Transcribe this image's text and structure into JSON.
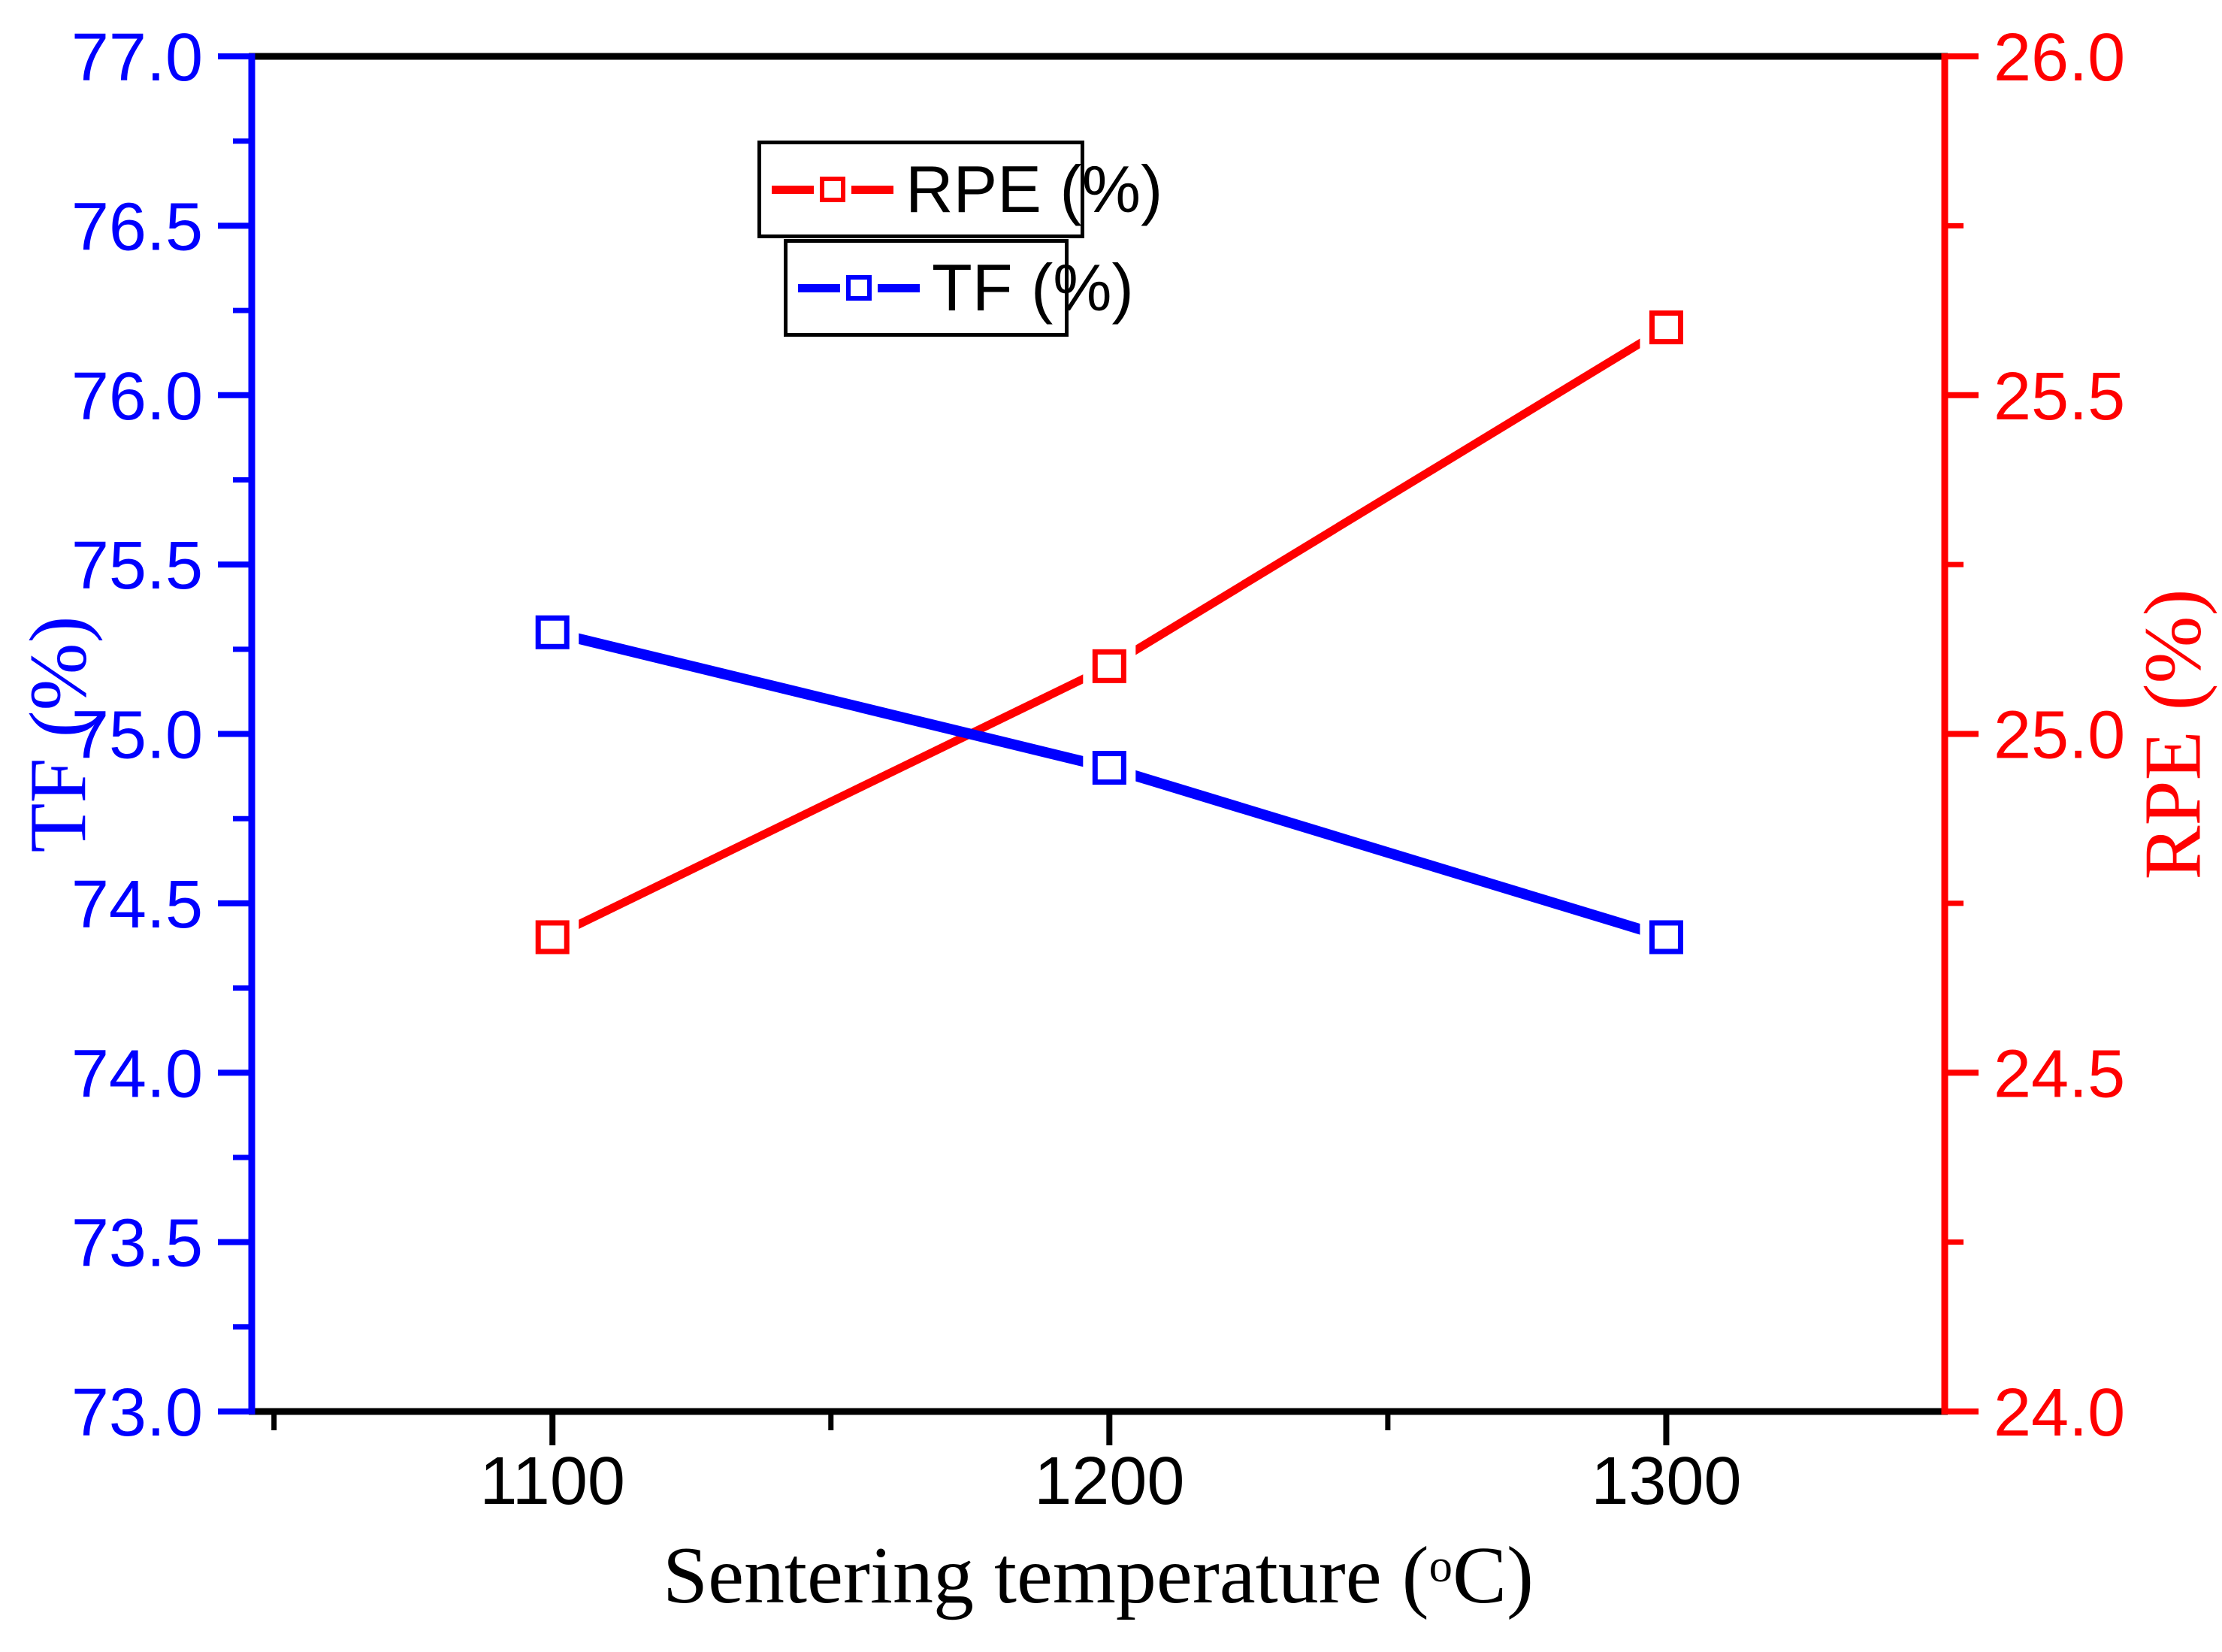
{
  "figure": {
    "background": "#ffffff"
  },
  "chart_data": {
    "type": "line",
    "title": "",
    "grid": false,
    "x_axis": {
      "label": "Sentering temperature (°C)",
      "label_parts": {
        "prefix": "Sentering temperature (",
        "sup": "o",
        "suffix": "C)"
      },
      "color": "#000000",
      "lim": [
        1046,
        1350
      ],
      "tick_values": [
        1100,
        1200,
        1300
      ],
      "tick_labels": [
        "1100",
        "1200",
        "1300"
      ],
      "minor_tick_values": [
        1050,
        1150,
        1250
      ]
    },
    "left_axis": {
      "label": "TF (%)",
      "color": "#0000ff",
      "lim": [
        73.0,
        77.0
      ],
      "tick_values": [
        77.0,
        76.5,
        76.0,
        75.5,
        75.0,
        74.5,
        74.0,
        73.5,
        73.0
      ],
      "tick_labels": [
        "77.0",
        "76.5",
        "76.0",
        "75.5",
        "75.0",
        "74.5",
        "74.0",
        "73.5",
        "73.0"
      ],
      "minor_tick_values": [
        76.75,
        76.25,
        75.75,
        75.25,
        74.75,
        74.25,
        73.75,
        73.25
      ]
    },
    "right_axis": {
      "label": "RPE (%)",
      "color": "#ff0000",
      "lim": [
        24.0,
        26.0
      ],
      "tick_values": [
        26.0,
        25.5,
        25.0,
        24.5,
        24.0
      ],
      "tick_labels": [
        "26.0",
        "25.5",
        "25.0",
        "24.5",
        "24.0"
      ],
      "minor_tick_values": [
        25.75,
        25.25,
        24.75,
        24.25
      ]
    },
    "x": [
      1100,
      1200,
      1300
    ],
    "series": [
      {
        "name": "RPE (%)",
        "axis": "right",
        "color": "#ff0000",
        "marker": "open-square",
        "values": [
          24.7,
          25.1,
          25.6
        ]
      },
      {
        "name": "TF (%)",
        "axis": "left",
        "color": "#0000ff",
        "marker": "open-square",
        "values": [
          75.3,
          74.9,
          74.4
        ]
      }
    ],
    "legend": {
      "position": "top-center",
      "entries": [
        {
          "label": "RPE (%)",
          "color": "#ff0000"
        },
        {
          "label": "TF (%)",
          "color": "#0000ff"
        }
      ]
    }
  }
}
